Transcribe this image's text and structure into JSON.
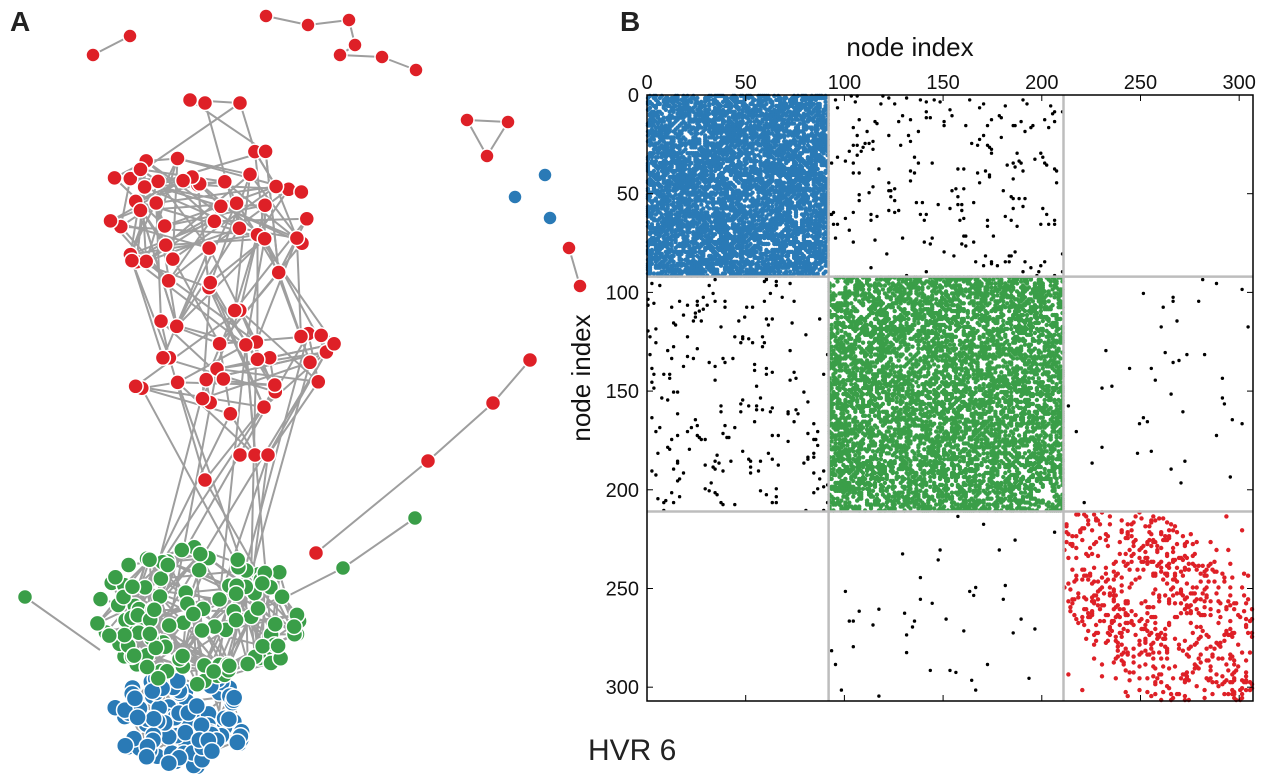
{
  "panels": {
    "a_label": "A",
    "b_label": "B"
  },
  "caption": "HVR 6",
  "colors": {
    "blue": "#2A7AB6",
    "green": "#3A9E48",
    "red": "#DE2027",
    "offdiag": "#000000",
    "edge": "#9E9E9E",
    "grid": "#BDBDBD"
  },
  "chart_data": [
    {
      "type": "network",
      "panel": "A",
      "communities": [
        {
          "color": "blue",
          "approx_nodes": 92
        },
        {
          "color": "green",
          "approx_nodes": 120
        },
        {
          "color": "red",
          "approx_nodes": 95
        }
      ]
    },
    {
      "type": "heatmap",
      "panel": "B",
      "subtype": "adjacency matrix (spy plot)",
      "xlabel": "node index",
      "ylabel": "node index",
      "xlim": [
        0,
        307
      ],
      "ylim": [
        0,
        307
      ],
      "y_inverted": true,
      "x_ticks": [
        0,
        50,
        100,
        150,
        200,
        250,
        300
      ],
      "y_ticks": [
        0,
        50,
        100,
        150,
        200,
        250,
        300
      ],
      "block_boundaries": [
        92,
        211
      ],
      "blocks": [
        {
          "range": [
            0,
            92
          ],
          "color": "blue"
        },
        {
          "range": [
            92,
            211
          ],
          "color": "green"
        },
        {
          "range": [
            211,
            307
          ],
          "color": "red"
        }
      ]
    }
  ]
}
